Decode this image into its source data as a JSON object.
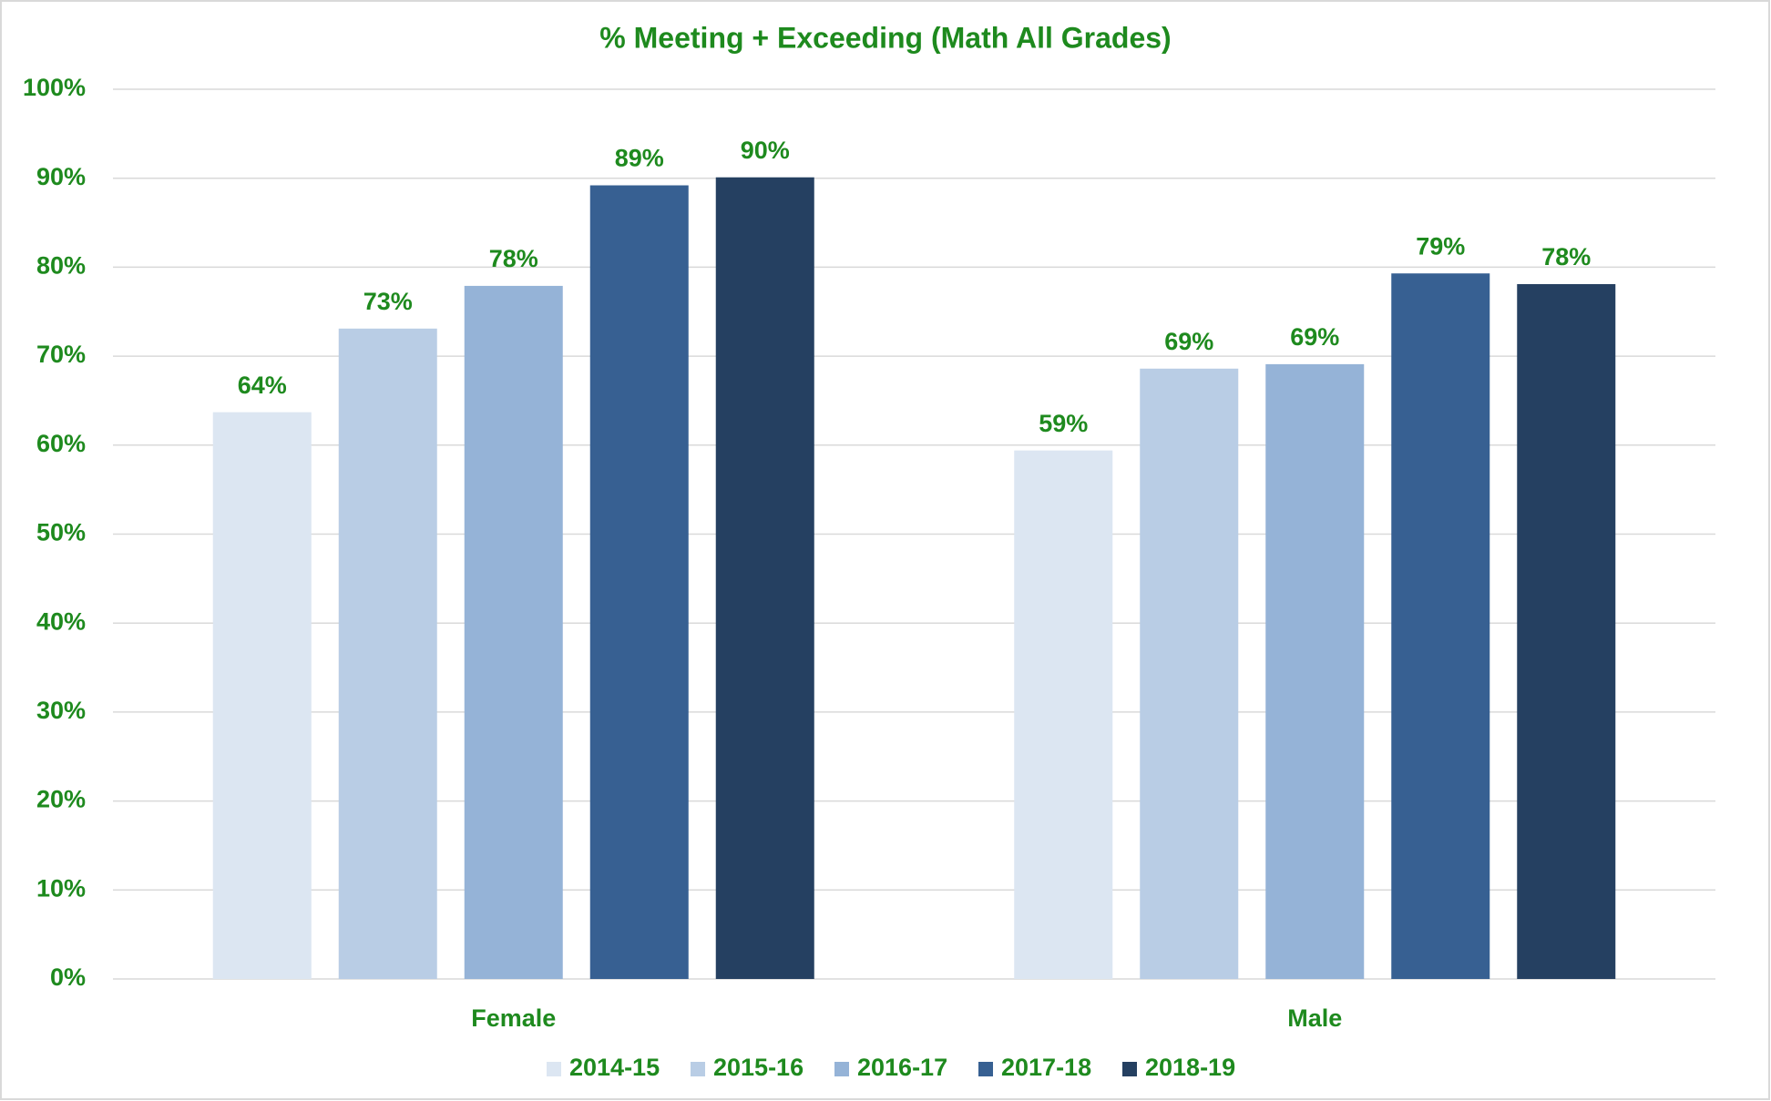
{
  "chart_data": {
    "type": "bar",
    "title": "% Meeting + Exceeding (Math All Grades)",
    "categories": [
      "Female",
      "Male"
    ],
    "series": [
      {
        "name": "2014-15",
        "color": "#dce6f2",
        "values": [
          63.7,
          59.4
        ],
        "value_labels": [
          "64%",
          "59%"
        ]
      },
      {
        "name": "2015-16",
        "color": "#b9cde5",
        "values": [
          73.1,
          68.6
        ],
        "value_labels": [
          "73%",
          "69%"
        ]
      },
      {
        "name": "2016-17",
        "color": "#95b3d7",
        "values": [
          77.9,
          69.1
        ],
        "value_labels": [
          "78%",
          "69%"
        ]
      },
      {
        "name": "2017-18",
        "color": "#376092",
        "values": [
          89.2,
          79.3
        ],
        "value_labels": [
          "89%",
          "79%"
        ]
      },
      {
        "name": "2018-19",
        "color": "#254061",
        "values": [
          90.1,
          78.1
        ],
        "value_labels": [
          "90%",
          "78%"
        ]
      }
    ],
    "ylim": [
      0,
      100
    ],
    "yticks": [
      {
        "value": 0,
        "label": "0%"
      },
      {
        "value": 10,
        "label": "10%"
      },
      {
        "value": 20,
        "label": "20%"
      },
      {
        "value": 30,
        "label": "30%"
      },
      {
        "value": 40,
        "label": "40%"
      },
      {
        "value": 50,
        "label": "50%"
      },
      {
        "value": 60,
        "label": "60%"
      },
      {
        "value": 70,
        "label": "70%"
      },
      {
        "value": 80,
        "label": "80%"
      },
      {
        "value": 90,
        "label": "90%"
      },
      {
        "value": 100,
        "label": "100%"
      }
    ],
    "grid": true,
    "legend": "bottom"
  }
}
